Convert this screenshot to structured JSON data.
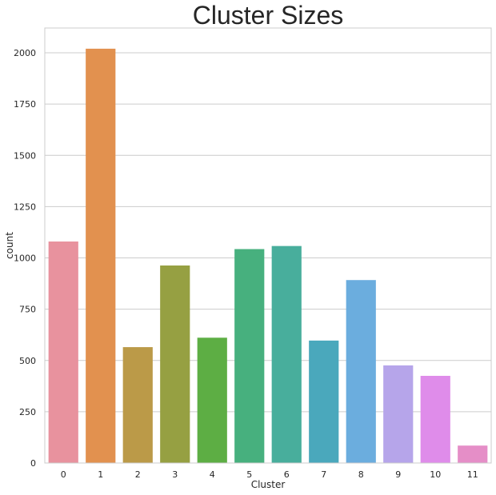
{
  "chart_data": {
    "type": "bar",
    "title": "Cluster Sizes",
    "xlabel": "Cluster",
    "ylabel": "count",
    "categories": [
      "0",
      "1",
      "2",
      "3",
      "4",
      "5",
      "6",
      "7",
      "8",
      "9",
      "10",
      "11"
    ],
    "values": [
      1080,
      2020,
      565,
      963,
      611,
      1043,
      1058,
      597,
      892,
      476,
      425,
      85
    ],
    "colors": [
      "#e8929e",
      "#e2914f",
      "#bb9a48",
      "#96a042",
      "#5dae44",
      "#47b07e",
      "#48ae9c",
      "#4aa8bc",
      "#6badde",
      "#b6a5ea",
      "#df8cea",
      "#e58ec7"
    ],
    "yticks": [
      0,
      250,
      500,
      750,
      1000,
      1250,
      1500,
      1750,
      2000
    ],
    "ytick_labels": [
      "0",
      "250",
      "500",
      "750",
      "1000",
      "1250",
      "1500",
      "1750",
      "2000"
    ],
    "ylim": [
      0,
      2121
    ],
    "grid": "horizontal",
    "grid_color": "#cccccc",
    "frame_color": "#cccccc",
    "text_color": "#262626",
    "background": "#ffffff"
  }
}
